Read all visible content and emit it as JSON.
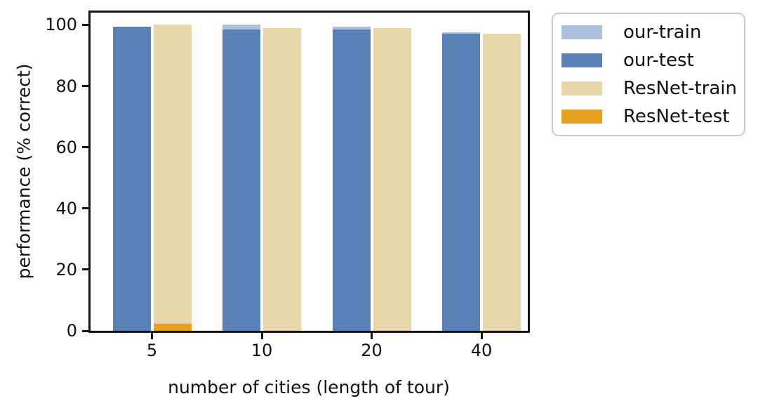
{
  "figure": {
    "background": "#ffffff"
  },
  "chart_data": {
    "type": "bar",
    "title": "",
    "xlabel": "number of cities (length of tour)",
    "ylabel": "performance (% correct)",
    "categories": [
      "5",
      "10",
      "20",
      "40"
    ],
    "series": [
      {
        "name": "our-train",
        "color": "#aac1dd",
        "values": [
          99.5,
          100.0,
          99.5,
          97.5
        ]
      },
      {
        "name": "our-test",
        "color": "#5a81b5",
        "values": [
          99.5,
          98.5,
          98.5,
          97.0
        ]
      },
      {
        "name": "ResNet-train",
        "color": "#e7d7ab",
        "values": [
          100.0,
          99.0,
          99.0,
          97.0
        ]
      },
      {
        "name": "ResNet-test",
        "color": "#e5a01e",
        "values": [
          2.3,
          0,
          0,
          0
        ]
      }
    ],
    "yticks": [
      0,
      20,
      40,
      60,
      80,
      100
    ],
    "ylim": [
      0,
      104
    ],
    "grid": false,
    "legend_position": "outside-upper-right",
    "bar_layout": "train and test bars overlap in the same slot (test drawn in front); 'our' pair left of each tick, 'ResNet' pair right of each tick",
    "axis_color": "#141414",
    "legend_border_color": "#cccccc"
  }
}
